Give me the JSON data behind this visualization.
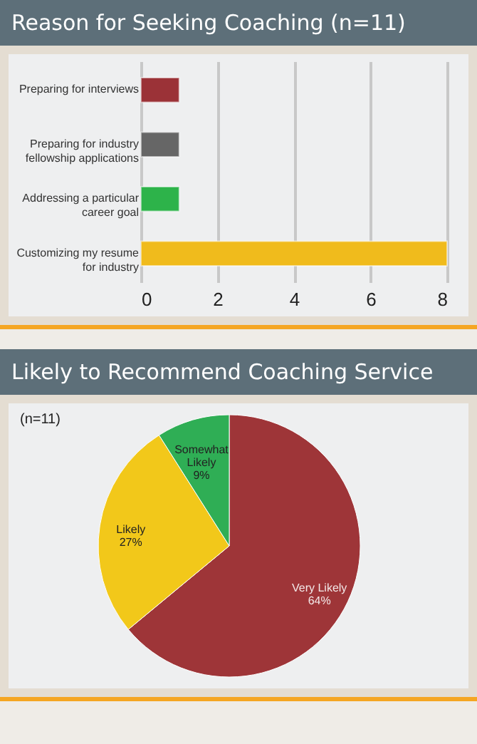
{
  "chart_data": [
    {
      "type": "bar",
      "title": "Reason for Seeking Coaching (n=11)",
      "orientation": "horizontal",
      "categories": [
        "Preparing for interviews",
        "Preparing for industry fellowship applications",
        "Addressing a particular career goal",
        "Customizing my resume for industry"
      ],
      "values": [
        1,
        1,
        1,
        8
      ],
      "colors": [
        "#9b3237",
        "#666666",
        "#2db34a",
        "#f0bb1c"
      ],
      "xlim": [
        0,
        8
      ],
      "xticks": [
        0,
        2,
        4,
        6,
        8
      ],
      "grid": "x"
    },
    {
      "type": "pie",
      "title": "Likely to Recommend Coaching Service",
      "annotations": [
        "(n=11)"
      ],
      "categories": [
        "Very Likely",
        "Likely",
        "Somewhat Likely"
      ],
      "values": [
        64,
        27,
        9
      ],
      "colors": [
        "#9e3538",
        "#f2c81a",
        "#2fae55"
      ],
      "value_labels": [
        "64%",
        "27%",
        "9%"
      ]
    }
  ]
}
